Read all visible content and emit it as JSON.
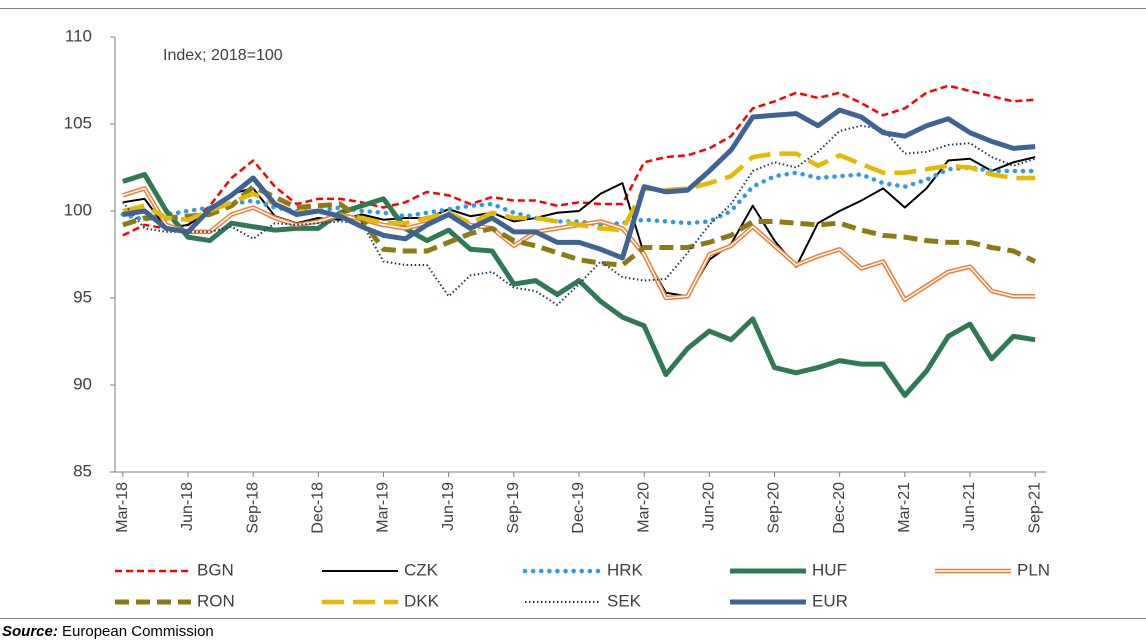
{
  "chart_data": {
    "type": "line",
    "annotation": "Index; 2018=100",
    "categories": [
      "Mar-18",
      null,
      null,
      "Jun-18",
      null,
      null,
      "Sep-18",
      null,
      null,
      "Dec-18",
      null,
      null,
      "Mar-19",
      null,
      null,
      "Jun-19",
      null,
      null,
      "Sep-19",
      null,
      null,
      "Dec-19",
      null,
      null,
      "Mar-20",
      null,
      null,
      "Jun-20",
      null,
      null,
      "Sep-20",
      null,
      null,
      "Dec-20",
      null,
      null,
      "Mar-21",
      null,
      null,
      "Jun-21",
      null,
      null,
      "Sep-21"
    ],
    "ylim": [
      85,
      110
    ],
    "yticks": [
      85,
      90,
      95,
      100,
      105,
      110
    ],
    "series": [
      {
        "name": "BGN",
        "color": "#ff0000",
        "style": "dashed",
        "values": [
          98.6,
          99.2,
          99.0,
          99.2,
          100.3,
          101.9,
          102.9,
          101.4,
          100.4,
          100.7,
          100.7,
          100.5,
          100.2,
          100.5,
          101.1,
          100.9,
          100.4,
          100.8,
          100.6,
          100.6,
          100.3,
          100.5,
          100.4,
          100.4,
          102.8,
          103.1,
          103.2,
          103.6,
          104.3,
          105.9,
          106.3,
          106.8,
          106.5,
          106.8,
          106.2,
          105.5,
          105.9,
          106.8,
          107.2,
          106.9,
          106.6,
          106.3,
          106.4
        ]
      },
      {
        "name": "CZK",
        "color": "#000000",
        "style": "solid",
        "values": [
          100.5,
          100.7,
          99.0,
          99.2,
          100.0,
          101.0,
          101.3,
          99.7,
          99.3,
          99.6,
          99.5,
          99.8,
          99.5,
          99.6,
          99.6,
          100.1,
          99.7,
          99.9,
          99.4,
          99.6,
          99.9,
          100.0,
          101.0,
          101.6,
          97.5,
          95.3,
          95.1,
          97.2,
          98.1,
          100.3,
          98.3,
          96.8,
          99.3,
          100.0,
          100.6,
          101.3,
          100.2,
          101.3,
          102.9,
          103.0,
          102.3,
          102.8,
          103.1
        ]
      },
      {
        "name": "HRK",
        "color": "#2e9ae6",
        "style": "dotted",
        "values": [
          99.8,
          99.5,
          99.8,
          100.0,
          100.2,
          100.4,
          100.6,
          100.2,
          100.0,
          100.0,
          100.2,
          100.0,
          99.9,
          99.7,
          99.9,
          100.1,
          100.3,
          100.4,
          99.9,
          99.6,
          99.4,
          99.4,
          99.2,
          99.3,
          99.5,
          99.4,
          99.3,
          99.4,
          100.0,
          101.4,
          102.0,
          102.2,
          101.9,
          102.0,
          102.1,
          101.6,
          101.4,
          101.8,
          102.4,
          102.5,
          102.3,
          102.3,
          102.3
        ]
      },
      {
        "name": "HUF",
        "color": "#2e7a54",
        "style": "thick",
        "values": [
          101.7,
          102.1,
          100.0,
          98.5,
          98.3,
          99.3,
          99.1,
          98.9,
          99.0,
          99.0,
          99.9,
          100.3,
          100.7,
          99.0,
          98.3,
          98.9,
          97.8,
          97.7,
          95.8,
          96.0,
          95.2,
          96.0,
          94.8,
          93.9,
          93.4,
          90.6,
          92.1,
          93.1,
          92.6,
          93.8,
          91.0,
          90.7,
          91.0,
          91.4,
          91.2,
          91.2,
          89.4,
          90.8,
          92.8,
          93.5,
          91.5,
          92.8,
          92.6
        ]
      },
      {
        "name": "PLN",
        "color": "#ed7d31",
        "style": "double",
        "values": [
          100.9,
          101.3,
          99.2,
          98.8,
          98.8,
          99.8,
          100.2,
          99.6,
          99.2,
          99.4,
          99.8,
          99.5,
          99.2,
          99.0,
          99.3,
          99.8,
          99.2,
          99.0,
          98.0,
          98.8,
          99.0,
          99.2,
          99.4,
          99.0,
          97.5,
          95.0,
          95.1,
          97.5,
          98.0,
          99.1,
          98.0,
          96.9,
          97.4,
          97.8,
          96.7,
          97.1,
          94.9,
          95.7,
          96.5,
          96.8,
          95.4,
          95.1,
          95.1
        ]
      },
      {
        "name": "RON",
        "color": "#8c7a13",
        "style": "thick-dashed",
        "values": [
          99.2,
          99.6,
          99.6,
          99.7,
          99.8,
          100.3,
          101.4,
          100.8,
          100.2,
          100.3,
          100.4,
          99.5,
          97.8,
          97.7,
          97.7,
          98.2,
          98.7,
          99.0,
          98.3,
          98.0,
          97.6,
          97.2,
          97.0,
          96.9,
          97.9,
          97.9,
          97.9,
          98.2,
          98.6,
          99.4,
          99.4,
          99.3,
          99.2,
          99.3,
          98.9,
          98.6,
          98.5,
          98.3,
          98.2,
          98.2,
          97.9,
          97.7,
          97.1
        ]
      },
      {
        "name": "DKK",
        "color": "#e6b800",
        "style": "long-dashed",
        "values": [
          100.0,
          100.3,
          99.6,
          99.5,
          100.0,
          100.5,
          101.0,
          100.4,
          99.9,
          100.0,
          99.7,
          99.6,
          99.3,
          99.3,
          99.6,
          99.9,
          99.3,
          99.9,
          99.6,
          99.6,
          99.4,
          99.2,
          99.0,
          98.9,
          101.3,
          101.2,
          101.3,
          101.6,
          102.0,
          103.1,
          103.3,
          103.3,
          102.6,
          103.2,
          102.7,
          102.2,
          102.2,
          102.4,
          102.6,
          102.5,
          102.1,
          101.9,
          101.9
        ]
      },
      {
        "name": "SEK",
        "color": "#1f3864",
        "style": "fine-dotted",
        "values": [
          100.5,
          99.0,
          98.8,
          98.8,
          98.8,
          99.1,
          98.4,
          99.3,
          99.2,
          99.3,
          99.4,
          99.3,
          97.1,
          96.9,
          96.9,
          95.1,
          96.3,
          96.5,
          95.6,
          95.4,
          94.6,
          95.8,
          97.1,
          96.2,
          96.0,
          96.1,
          97.6,
          99.2,
          100.4,
          102.3,
          102.8,
          102.5,
          103.4,
          104.6,
          104.9,
          104.7,
          103.3,
          103.4,
          103.8,
          103.9,
          103.1,
          102.6,
          103.0
        ]
      },
      {
        "name": "EUR",
        "color": "#3e6496",
        "style": "thick",
        "values": [
          99.8,
          100.0,
          99.0,
          98.8,
          100.1,
          100.9,
          101.9,
          100.4,
          99.8,
          100.0,
          99.7,
          99.1,
          98.6,
          98.4,
          99.2,
          99.8,
          99.0,
          99.6,
          98.8,
          98.8,
          98.2,
          98.2,
          97.8,
          97.3,
          101.4,
          101.1,
          101.2,
          102.3,
          103.5,
          105.4,
          105.5,
          105.6,
          104.9,
          105.8,
          105.4,
          104.5,
          104.3,
          104.9,
          105.3,
          104.5,
          104.0,
          103.6,
          103.7
        ]
      }
    ]
  },
  "footer": {
    "source_label": "Source:",
    "source": "European Commission"
  }
}
